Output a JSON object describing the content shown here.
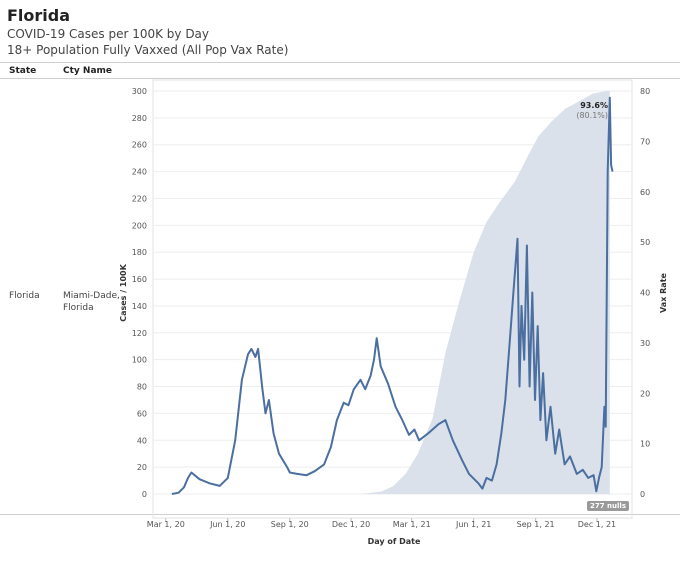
{
  "header": {
    "title": "Florida",
    "subtitle1": "COVID-19 Cases per 100K by Day",
    "subtitle2": "18+ Population Fully Vaxxed (All Pop Vax Rate)"
  },
  "table": {
    "col_state": "State",
    "col_city": "Cty Name",
    "row_state": "Florida",
    "row_city_line1": "Miami-Dade,",
    "row_city_line2": "Florida"
  },
  "annotation": {
    "peak_vax": "93.6%",
    "peak_vax_all": "(80.1%)",
    "nulls": "277 nulls"
  },
  "colors": {
    "cases_line": "#4a6fa0",
    "vax_area": "#dbe1ea",
    "grid": "#eeeeee"
  },
  "chart_data": {
    "type": "line",
    "xlabel": "Day of Date",
    "ylabel": "Cases / 100K",
    "y2label": "Vax Rate",
    "ylim": [
      0,
      300
    ],
    "y2lim": [
      0,
      80
    ],
    "yticks": [
      0,
      20,
      40,
      60,
      80,
      100,
      120,
      140,
      160,
      180,
      200,
      220,
      240,
      260,
      280,
      300
    ],
    "y2ticks": [
      0,
      10,
      20,
      30,
      40,
      50,
      60,
      70,
      80
    ],
    "x_domain": [
      "2020-02-11",
      "2022-01-22"
    ],
    "xticks": [
      {
        "date": "2020-03-01",
        "label": "Mar 1, 20"
      },
      {
        "date": "2020-06-01",
        "label": "Jun 1, 20"
      },
      {
        "date": "2020-09-01",
        "label": "Sep 1, 20"
      },
      {
        "date": "2020-12-01",
        "label": "Dec 1, 20"
      },
      {
        "date": "2021-03-01",
        "label": "Mar 1, 21"
      },
      {
        "date": "2021-06-01",
        "label": "Jun 1, 21"
      },
      {
        "date": "2021-09-01",
        "label": "Sep 1, 21"
      },
      {
        "date": "2021-12-01",
        "label": "Dec 1, 21"
      }
    ],
    "series": [
      {
        "axis": "left",
        "values": [
          [
            "2020-03-10",
            0
          ],
          [
            "2020-03-20",
            1
          ],
          [
            "2020-03-28",
            5
          ],
          [
            "2020-04-03",
            12
          ],
          [
            "2020-04-08",
            16
          ],
          [
            "2020-04-20",
            11
          ],
          [
            "2020-05-05",
            8
          ],
          [
            "2020-05-20",
            6
          ],
          [
            "2020-06-01",
            12
          ],
          [
            "2020-06-12",
            40
          ],
          [
            "2020-06-22",
            85
          ],
          [
            "2020-07-01",
            104
          ],
          [
            "2020-07-06",
            108
          ],
          [
            "2020-07-12",
            102
          ],
          [
            "2020-07-16",
            108
          ],
          [
            "2020-07-22",
            80
          ],
          [
            "2020-07-27",
            60
          ],
          [
            "2020-08-01",
            70
          ],
          [
            "2020-08-08",
            45
          ],
          [
            "2020-08-16",
            30
          ],
          [
            "2020-08-28",
            20
          ],
          [
            "2020-09-01",
            16
          ],
          [
            "2020-09-12",
            15
          ],
          [
            "2020-09-26",
            14
          ],
          [
            "2020-10-08",
            17
          ],
          [
            "2020-10-22",
            22
          ],
          [
            "2020-11-01",
            35
          ],
          [
            "2020-11-10",
            55
          ],
          [
            "2020-11-20",
            68
          ],
          [
            "2020-11-27",
            66
          ],
          [
            "2020-12-05",
            78
          ],
          [
            "2020-12-15",
            85
          ],
          [
            "2020-12-22",
            78
          ],
          [
            "2020-12-30",
            88
          ],
          [
            "2021-01-04",
            100
          ],
          [
            "2021-01-08",
            116
          ],
          [
            "2021-01-14",
            95
          ],
          [
            "2021-01-25",
            82
          ],
          [
            "2021-02-05",
            65
          ],
          [
            "2021-02-15",
            55
          ],
          [
            "2021-02-25",
            44
          ],
          [
            "2021-03-05",
            48
          ],
          [
            "2021-03-12",
            40
          ],
          [
            "2021-03-25",
            45
          ],
          [
            "2021-04-10",
            52
          ],
          [
            "2021-04-20",
            55
          ],
          [
            "2021-05-01",
            40
          ],
          [
            "2021-05-15",
            25
          ],
          [
            "2021-05-25",
            15
          ],
          [
            "2021-06-08",
            8
          ],
          [
            "2021-06-14",
            4
          ],
          [
            "2021-06-20",
            12
          ],
          [
            "2021-06-28",
            10
          ],
          [
            "2021-07-05",
            22
          ],
          [
            "2021-07-12",
            45
          ],
          [
            "2021-07-18",
            70
          ],
          [
            "2021-07-24",
            110
          ],
          [
            "2021-07-30",
            150
          ],
          [
            "2021-08-05",
            190
          ],
          [
            "2021-08-08",
            80
          ],
          [
            "2021-08-11",
            140
          ],
          [
            "2021-08-15",
            100
          ],
          [
            "2021-08-19",
            185
          ],
          [
            "2021-08-23",
            80
          ],
          [
            "2021-08-27",
            150
          ],
          [
            "2021-08-31",
            70
          ],
          [
            "2021-09-04",
            125
          ],
          [
            "2021-09-08",
            55
          ],
          [
            "2021-09-12",
            90
          ],
          [
            "2021-09-17",
            40
          ],
          [
            "2021-09-23",
            65
          ],
          [
            "2021-09-30",
            30
          ],
          [
            "2021-10-06",
            48
          ],
          [
            "2021-10-14",
            22
          ],
          [
            "2021-10-22",
            28
          ],
          [
            "2021-11-01",
            15
          ],
          [
            "2021-11-10",
            18
          ],
          [
            "2021-11-18",
            12
          ],
          [
            "2021-11-26",
            14
          ],
          [
            "2021-11-30",
            2
          ],
          [
            "2021-12-04",
            12
          ],
          [
            "2021-12-08",
            20
          ],
          [
            "2021-12-12",
            65
          ],
          [
            "2021-12-14",
            50
          ],
          [
            "2021-12-17",
            240
          ],
          [
            "2021-12-20",
            295
          ],
          [
            "2021-12-22",
            245
          ],
          [
            "2021-12-24",
            240
          ]
        ]
      },
      {
        "axis": "right",
        "values": [
          [
            "2020-12-15",
            0
          ],
          [
            "2021-01-15",
            0.5
          ],
          [
            "2021-02-01",
            1.5
          ],
          [
            "2021-02-20",
            4
          ],
          [
            "2021-03-10",
            8
          ],
          [
            "2021-04-01",
            15
          ],
          [
            "2021-04-20",
            28
          ],
          [
            "2021-05-10",
            38
          ],
          [
            "2021-06-01",
            48
          ],
          [
            "2021-06-20",
            54
          ],
          [
            "2021-07-10",
            58
          ],
          [
            "2021-08-01",
            62
          ],
          [
            "2021-08-20",
            67
          ],
          [
            "2021-09-05",
            71
          ],
          [
            "2021-09-25",
            74
          ],
          [
            "2021-10-15",
            76.5
          ],
          [
            "2021-11-05",
            78
          ],
          [
            "2021-11-25",
            79.5
          ],
          [
            "2021-12-20",
            80.1
          ]
        ]
      }
    ]
  }
}
